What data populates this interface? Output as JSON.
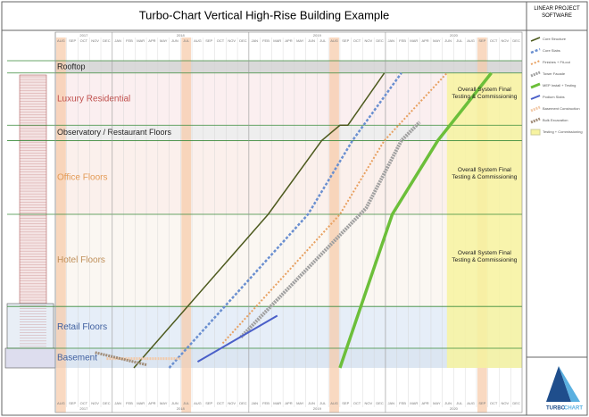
{
  "chart_data": {
    "type": "line",
    "title": "Turbo-Chart Vertical High-Rise Building Example",
    "logo": {
      "top": "LINEAR PROJECT SOFTWARE",
      "left": "TURBO",
      "right": "CHART"
    },
    "categories": [
      "AUG",
      "SEP",
      "OCT",
      "NOV",
      "DEC",
      "JAN",
      "FEB",
      "MAR",
      "APR",
      "MAY",
      "JUN",
      "JUL",
      "AUG",
      "SEP",
      "OCT",
      "NOV",
      "DEC",
      "JAN",
      "FEB",
      "MAR",
      "APR",
      "MAY",
      "JUN",
      "JUL",
      "AUG",
      "SEP",
      "OCT",
      "NOV",
      "DEC",
      "JAN",
      "FEB",
      "MAR",
      "APR",
      "MAY",
      "JUN",
      "JUL",
      "AUG",
      "SEP",
      "OCT",
      "NOV",
      "DEC"
    ],
    "years": [
      "2017",
      "2018",
      "2019",
      "2020"
    ],
    "xlim": [
      0,
      41
    ],
    "ylim": [
      0,
      100
    ],
    "shutdown_months": [
      0,
      11,
      24,
      37
    ],
    "zones": [
      {
        "label": "Basement",
        "from": 0,
        "to": 6.4,
        "fill": "#dce6f2",
        "color": "#3f5f9f"
      },
      {
        "label": "Retail Floors",
        "from": 6.4,
        "to": 20,
        "fill": "#e6eef8",
        "color": "#3f5f9f"
      },
      {
        "label": "Hotel Floors",
        "from": 20,
        "to": 50,
        "fill": "#fbf7f2",
        "color": "#c0905a"
      },
      {
        "label": "Office Floors",
        "from": 50,
        "to": 74,
        "fill": "#fbf0ec",
        "color": "#e39a55"
      },
      {
        "label": "Observatory / Restaurant Floors",
        "from": 74,
        "to": 79,
        "fill": "#eeeeee",
        "color": "#222222"
      },
      {
        "label": "Luxury Residential",
        "from": 79,
        "to": 96,
        "fill": "#fbeff0",
        "color": "#c0504d"
      },
      {
        "label": "Rooftop",
        "from": 96,
        "to": 100,
        "fill": "#d9d9d9",
        "color": "#222222"
      }
    ],
    "bands": [
      {
        "name": "Testing + Commissioning",
        "color": "#f7f3a0",
        "x": [
          34.4,
          41
        ],
        "values": [
          0,
          96
        ]
      }
    ],
    "annotations": [
      {
        "text": "Overall System Final Testing & Commissioning",
        "x": 37.7,
        "y": 88
      },
      {
        "text": "Overall System Final Testing & Commissioning",
        "x": 37.7,
        "y": 62
      },
      {
        "text": "Overall System Final Testing & Commissioning",
        "x": 37.7,
        "y": 35
      }
    ],
    "series": [
      {
        "name": "Core Structure",
        "color": "#4d5a1e",
        "width": 1.5,
        "dash": "",
        "x": [
          6.9,
          18.7,
          23.4,
          25,
          25.7,
          28.9
        ],
        "values": [
          0,
          50,
          74,
          79,
          79,
          96
        ]
      },
      {
        "name": "Core Slabs",
        "color": "#6a8fd0",
        "width": 2.5,
        "dash": "3 2",
        "x": [
          10,
          22.2,
          26.1,
          30.4
        ],
        "values": [
          0,
          50,
          74,
          96
        ]
      },
      {
        "name": "Finishes + Fit-out",
        "color": "#e8a060",
        "width": 2,
        "dash": "2 2",
        "x": [
          14.7,
          25,
          28.9,
          34.4
        ],
        "values": [
          8,
          50,
          74,
          96
        ]
      },
      {
        "name": "Tower Facade",
        "color": "#a0a0a0",
        "width": 4,
        "dash": "2 1",
        "x": [
          16.3,
          27.3,
          30.4,
          32
        ],
        "values": [
          10,
          52,
          74,
          80
        ]
      },
      {
        "name": "MEP Install + Testing",
        "color": "#6cbf3a",
        "width": 3.5,
        "dash": "",
        "x": [
          25,
          29.6,
          33.6,
          38.3
        ],
        "values": [
          0,
          50,
          74,
          96
        ]
      },
      {
        "name": "Podium Slabs",
        "color": "#4a5fc8",
        "width": 2,
        "dash": "",
        "x": [
          12.5,
          19.5
        ],
        "values": [
          2,
          17
        ]
      },
      {
        "name": "Basement Construction",
        "color": "#f2c9a8",
        "width": 3,
        "dash": "2 1",
        "x": [
          4.5,
          11
        ],
        "values": [
          3,
          3
        ]
      },
      {
        "name": "Bulk Excavation",
        "color": "#a08c78",
        "width": 3,
        "dash": "2 1",
        "x": [
          3.5,
          8
        ],
        "values": [
          5,
          1
        ]
      }
    ]
  }
}
